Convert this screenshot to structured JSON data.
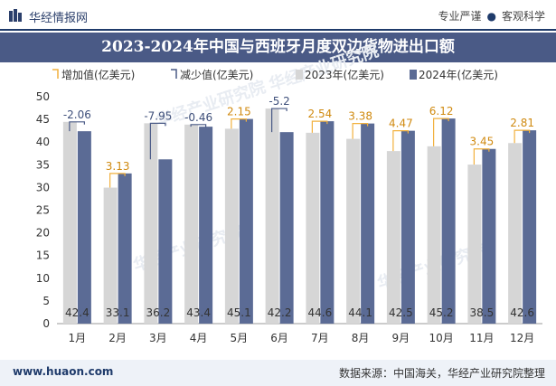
{
  "header": {
    "brand": "华经情报网",
    "tagline_left": "专业严谨",
    "tagline_right": "客观科学"
  },
  "colors": {
    "bar2023": "#d6d6d6",
    "bar2024": "#5b6b95",
    "increase_marker": "#f2b13e",
    "decrease_marker": "#4a5a86",
    "title_bg": "#4a5a86"
  },
  "chart_data": {
    "type": "bar",
    "title": "2023-2024年中国与西班牙月度双边货物进出口额",
    "categories": [
      "1月",
      "2月",
      "3月",
      "4月",
      "5月",
      "6月",
      "7月",
      "8月",
      "9月",
      "10月",
      "11月",
      "12月"
    ],
    "series": [
      {
        "name": "2023年(亿美元)",
        "values": [
          44.46,
          29.97,
          44.15,
          43.86,
          42.95,
          47.4,
          42.06,
          40.72,
          38.03,
          39.08,
          35.05,
          39.79
        ]
      },
      {
        "name": "2024年(亿美元)",
        "values": [
          42.4,
          33.1,
          36.2,
          43.4,
          45.1,
          42.2,
          44.6,
          44.1,
          42.5,
          45.2,
          38.5,
          42.6
        ]
      }
    ],
    "change_values": [
      -2.06,
      3.13,
      -7.95,
      -0.46,
      2.15,
      -5.2,
      2.54,
      3.38,
      4.47,
      6.12,
      3.45,
      2.81
    ],
    "change_labels": [
      "-2.06",
      "3.13",
      "-7.95",
      "-0.46",
      "2.15",
      "-5.2",
      "2.54",
      "3.38",
      "4.47",
      "6.12",
      "3.45",
      "2.81"
    ],
    "value_labels": [
      "42.4",
      "33.1",
      "36.2",
      "43.4",
      "45.1",
      "42.2",
      "44.6",
      "44.1",
      "42.5",
      "45.2",
      "38.5",
      "42.6"
    ],
    "legend": [
      "增加值(亿美元)",
      "减少值(亿美元)",
      "2023年(亿美元)",
      "2024年(亿美元)"
    ],
    "legend_position": "top",
    "ylim": [
      0,
      50
    ],
    "yticks": [
      0,
      5,
      10,
      15,
      20,
      25,
      30,
      35,
      40,
      45,
      50
    ],
    "grid": false
  },
  "watermark": "华经产业研究院",
  "footer": {
    "site": "www.huaon.com",
    "source": "数据来源：中国海关，华经产业研究院整理"
  }
}
